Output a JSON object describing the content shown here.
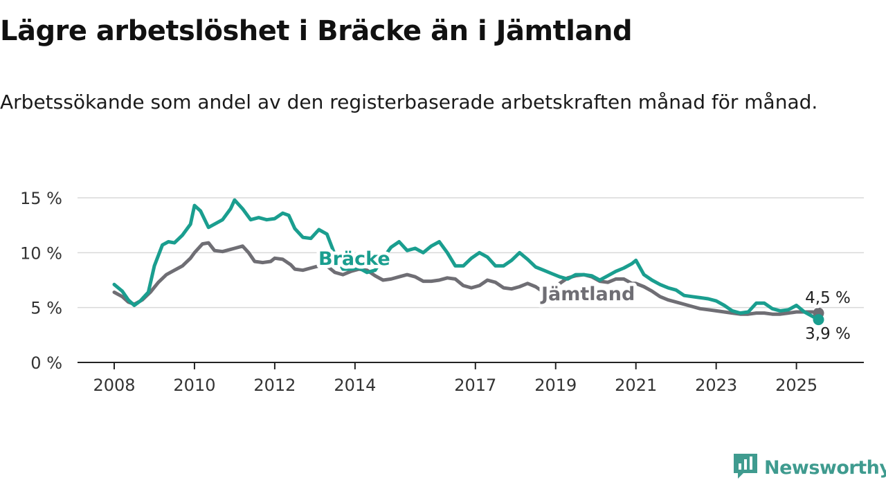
{
  "header": {
    "title": "Lägre arbetslöshet i Bräcke än i Jämtland",
    "subtitle": "Arbetssökande som andel av den registerbaserade arbetskraften månad för månad."
  },
  "branding": {
    "name": "Newsworthy",
    "icon": "bar-chart-logo-icon",
    "color": "#3f9b8f"
  },
  "chart_data": {
    "type": "line",
    "title": "Lägre arbetslöshet i Bräcke än i Jämtland",
    "subtitle": "Arbetssökande som andel av den registerbaserade arbetskraften månad för månad.",
    "xlabel": "",
    "ylabel": "",
    "ylim": [
      0,
      15
    ],
    "xlim": [
      2008.0,
      2025.8
    ],
    "y_ticks": [
      0,
      5,
      10,
      15
    ],
    "y_tick_labels": [
      "0 %",
      "5 %",
      "10 %",
      "15 %"
    ],
    "x_ticks": [
      2008,
      2010,
      2012,
      2014,
      2017,
      2019,
      2021,
      2023,
      2025
    ],
    "x_tick_labels": [
      "2008",
      "2010",
      "2012",
      "2014",
      "2017",
      "2019",
      "2021",
      "2023",
      "2025"
    ],
    "grid": "horizontal",
    "legend": "direct labels on lines",
    "series": [
      {
        "name": "Bräcke",
        "color": "#1a9e8f",
        "end_label": "3,9 %",
        "x": [
          2008.0,
          2008.2,
          2008.35,
          2008.5,
          2008.65,
          2008.85,
          2009.0,
          2009.2,
          2009.35,
          2009.5,
          2009.7,
          2009.9,
          2010.0,
          2010.15,
          2010.35,
          2010.5,
          2010.7,
          2010.9,
          2011.0,
          2011.2,
          2011.4,
          2011.6,
          2011.8,
          2012.0,
          2012.2,
          2012.35,
          2012.5,
          2012.7,
          2012.9,
          2013.1,
          2013.3,
          2013.5,
          2013.7,
          2013.9,
          2014.1,
          2014.3,
          2014.5,
          2014.7,
          2014.9,
          2015.1,
          2015.3,
          2015.5,
          2015.7,
          2015.9,
          2016.1,
          2016.3,
          2016.5,
          2016.7,
          2016.9,
          2017.1,
          2017.3,
          2017.5,
          2017.7,
          2017.9,
          2018.1,
          2018.3,
          2018.5,
          2018.7,
          2018.9,
          2019.1,
          2019.3,
          2019.5,
          2019.7,
          2019.9,
          2020.1,
          2020.3,
          2020.5,
          2020.7,
          2020.9,
          2021.0,
          2021.2,
          2021.4,
          2021.6,
          2021.8,
          2022.0,
          2022.2,
          2022.4,
          2022.6,
          2022.8,
          2023.0,
          2023.2,
          2023.4,
          2023.6,
          2023.8,
          2024.0,
          2024.2,
          2024.4,
          2024.6,
          2024.8,
          2025.0,
          2025.2,
          2025.4,
          2025.55
        ],
        "values": [
          7.1,
          6.5,
          5.7,
          5.2,
          5.6,
          6.4,
          8.8,
          10.7,
          11.0,
          10.9,
          11.6,
          12.6,
          14.3,
          13.8,
          12.3,
          12.6,
          13.0,
          14.0,
          14.8,
          14.0,
          13.0,
          13.2,
          13.0,
          13.1,
          13.6,
          13.4,
          12.2,
          11.4,
          11.3,
          12.1,
          11.7,
          9.8,
          8.5,
          8.5,
          8.6,
          8.2,
          8.4,
          9.5,
          10.5,
          11.0,
          10.2,
          10.4,
          10.0,
          10.6,
          11.0,
          10.0,
          8.8,
          8.8,
          9.5,
          10.0,
          9.6,
          8.8,
          8.8,
          9.3,
          10.0,
          9.4,
          8.7,
          8.4,
          8.1,
          7.8,
          7.6,
          8.0,
          8.0,
          7.9,
          7.5,
          7.9,
          8.3,
          8.6,
          9.0,
          9.3,
          8.0,
          7.5,
          7.1,
          6.8,
          6.6,
          6.1,
          6.0,
          5.9,
          5.8,
          5.6,
          5.2,
          4.7,
          4.5,
          4.6,
          5.4,
          5.4,
          4.9,
          4.7,
          4.8,
          5.2,
          4.6,
          4.2,
          3.9
        ]
      },
      {
        "name": "Jämtland",
        "color": "#6f6e74",
        "end_label": "4,5 %",
        "x": [
          2008.0,
          2008.2,
          2008.35,
          2008.5,
          2008.7,
          2008.9,
          2009.1,
          2009.3,
          2009.5,
          2009.7,
          2009.9,
          2010.0,
          2010.2,
          2010.35,
          2010.5,
          2010.7,
          2010.9,
          2011.0,
          2011.2,
          2011.35,
          2011.5,
          2011.7,
          2011.9,
          2012.0,
          2012.2,
          2012.4,
          2012.5,
          2012.7,
          2012.9,
          2013.1,
          2013.3,
          2013.5,
          2013.7,
          2013.9,
          2014.1,
          2014.3,
          2014.5,
          2014.7,
          2014.9,
          2015.1,
          2015.3,
          2015.5,
          2015.7,
          2015.9,
          2016.1,
          2016.3,
          2016.5,
          2016.7,
          2016.9,
          2017.1,
          2017.3,
          2017.5,
          2017.7,
          2017.9,
          2018.1,
          2018.3,
          2018.5,
          2018.7,
          2018.9,
          2019.1,
          2019.3,
          2019.5,
          2019.7,
          2019.9,
          2020.1,
          2020.3,
          2020.5,
          2020.7,
          2020.9,
          2021.0,
          2021.2,
          2021.4,
          2021.6,
          2021.8,
          2022.0,
          2022.2,
          2022.4,
          2022.6,
          2022.8,
          2023.0,
          2023.2,
          2023.4,
          2023.6,
          2023.8,
          2024.0,
          2024.2,
          2024.4,
          2024.6,
          2024.8,
          2025.0,
          2025.2,
          2025.4,
          2025.55
        ],
        "values": [
          6.4,
          6.0,
          5.5,
          5.3,
          5.7,
          6.4,
          7.3,
          8.0,
          8.4,
          8.8,
          9.5,
          10.0,
          10.8,
          10.9,
          10.2,
          10.1,
          10.3,
          10.4,
          10.6,
          10.0,
          9.2,
          9.1,
          9.2,
          9.5,
          9.4,
          8.9,
          8.5,
          8.4,
          8.6,
          8.8,
          8.8,
          8.2,
          8.0,
          8.3,
          8.5,
          8.4,
          7.9,
          7.5,
          7.6,
          7.8,
          8.0,
          7.8,
          7.4,
          7.4,
          7.5,
          7.7,
          7.6,
          7.0,
          6.8,
          7.0,
          7.5,
          7.3,
          6.8,
          6.7,
          6.9,
          7.2,
          6.9,
          6.4,
          6.4,
          7.2,
          7.7,
          7.9,
          8.0,
          7.8,
          7.4,
          7.3,
          7.6,
          7.6,
          7.2,
          7.2,
          6.9,
          6.5,
          6.0,
          5.7,
          5.5,
          5.3,
          5.1,
          4.9,
          4.8,
          4.7,
          4.6,
          4.5,
          4.4,
          4.4,
          4.5,
          4.5,
          4.4,
          4.4,
          4.5,
          4.6,
          4.6,
          4.6,
          4.5
        ]
      }
    ]
  }
}
